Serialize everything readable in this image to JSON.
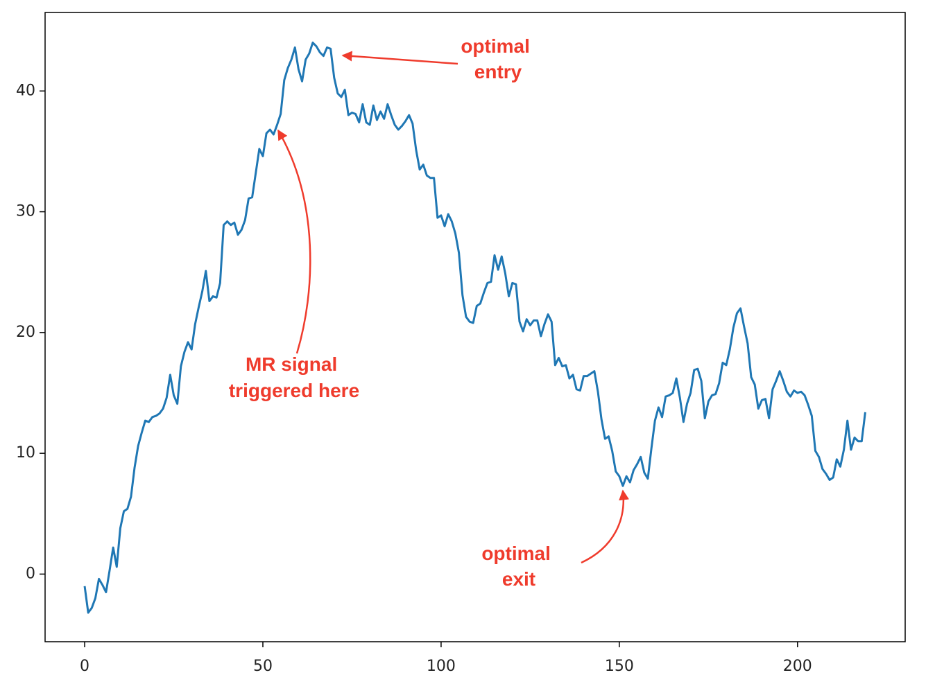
{
  "chart_data": {
    "type": "line",
    "x": [
      0,
      1,
      2,
      3,
      4,
      5,
      6,
      7,
      8,
      9,
      10,
      11,
      12,
      13,
      14,
      15,
      16,
      17,
      18,
      19,
      20,
      21,
      22,
      23,
      24,
      25,
      26,
      27,
      28,
      29,
      30,
      31,
      32,
      33,
      34,
      35,
      36,
      37,
      38,
      39,
      40,
      41,
      42,
      43,
      44,
      45,
      46,
      47,
      48,
      49,
      50,
      51,
      52,
      53,
      54,
      55,
      56,
      57,
      58,
      59,
      60,
      61,
      62,
      63,
      64,
      65,
      66,
      67,
      68,
      69,
      70,
      71,
      72,
      73,
      74,
      75,
      76,
      77,
      78,
      79,
      80,
      81,
      82,
      83,
      84,
      85,
      86,
      87,
      88,
      89,
      90,
      91,
      92,
      93,
      94,
      95,
      96,
      97,
      98,
      99,
      100,
      101,
      102,
      103,
      104,
      105,
      106,
      107,
      108,
      109,
      110,
      111,
      112,
      113,
      114,
      115,
      116,
      117,
      118,
      119,
      120,
      121,
      122,
      123,
      124,
      125,
      126,
      127,
      128,
      129,
      130,
      131,
      132,
      133,
      134,
      135,
      136,
      137,
      138,
      139,
      140,
      141,
      142,
      143,
      144,
      145,
      146,
      147,
      148,
      149,
      150,
      151,
      152,
      153,
      154,
      155,
      156,
      157,
      158,
      159,
      160,
      161,
      162,
      163,
      164,
      165,
      166,
      167,
      168,
      169,
      170,
      171,
      172,
      173,
      174,
      175,
      176,
      177,
      178,
      179,
      180,
      181,
      182,
      183,
      184,
      185,
      186,
      187,
      188,
      189,
      190,
      191,
      192,
      193,
      194,
      195,
      196,
      197,
      198,
      199,
      200,
      201,
      202,
      203,
      204,
      205,
      206,
      207,
      208,
      209,
      210,
      211,
      212,
      213,
      214,
      215,
      216,
      217,
      218,
      219
    ],
    "values": [
      -1.0,
      -3.2,
      -2.8,
      -2.0,
      -0.4,
      -0.9,
      -1.5,
      0.3,
      2.2,
      0.6,
      3.8,
      5.2,
      5.4,
      6.4,
      8.8,
      10.6,
      11.7,
      12.7,
      12.6,
      13.0,
      13.1,
      13.3,
      13.7,
      14.6,
      16.5,
      14.8,
      14.1,
      17.2,
      18.4,
      19.2,
      18.6,
      20.7,
      22.1,
      23.4,
      25.1,
      22.6,
      23.0,
      22.9,
      24.1,
      28.9,
      29.2,
      28.9,
      29.1,
      28.1,
      28.5,
      29.3,
      31.1,
      31.2,
      33.2,
      35.2,
      34.6,
      36.5,
      36.8,
      36.4,
      37.2,
      38.1,
      40.9,
      41.9,
      42.6,
      43.6,
      41.8,
      40.8,
      42.6,
      43.1,
      44.0,
      43.7,
      43.2,
      42.9,
      43.6,
      43.5,
      41.1,
      39.8,
      39.5,
      40.1,
      38.0,
      38.2,
      38.1,
      37.4,
      38.9,
      37.4,
      37.2,
      38.8,
      37.6,
      38.3,
      37.7,
      38.9,
      38.0,
      37.2,
      36.8,
      37.1,
      37.5,
      38.0,
      37.3,
      35.1,
      33.5,
      33.9,
      33.0,
      32.8,
      32.8,
      29.5,
      29.7,
      28.8,
      29.8,
      29.2,
      28.2,
      26.6,
      23.1,
      21.3,
      20.9,
      20.8,
      22.2,
      22.4,
      23.3,
      24.1,
      24.2,
      26.4,
      25.2,
      26.3,
      24.9,
      23.0,
      24.1,
      24.0,
      20.9,
      20.1,
      21.1,
      20.6,
      21.0,
      21.0,
      19.7,
      20.7,
      21.5,
      20.9,
      17.3,
      17.9,
      17.2,
      17.3,
      16.2,
      16.5,
      15.3,
      15.2,
      16.4,
      16.4,
      16.6,
      16.8,
      15.1,
      12.8,
      11.2,
      11.4,
      10.2,
      8.5,
      8.1,
      7.3,
      8.1,
      7.6,
      8.6,
      9.1,
      9.7,
      8.4,
      7.9,
      10.4,
      12.7,
      13.8,
      13.0,
      14.7,
      14.8,
      15.0,
      16.2,
      14.6,
      12.6,
      14.1,
      15.0,
      16.9,
      17.0,
      16.0,
      12.9,
      14.3,
      14.8,
      14.9,
      15.8,
      17.5,
      17.3,
      18.6,
      20.4,
      21.6,
      22.0,
      20.5,
      19.1,
      16.3,
      15.7,
      13.7,
      14.4,
      14.5,
      12.9,
      15.3,
      16.0,
      16.8,
      16.0,
      15.1,
      14.7,
      15.2,
      15.0,
      15.1,
      14.8,
      14.0,
      13.1,
      10.2,
      9.7,
      8.7,
      8.3,
      7.8,
      8.0,
      9.5,
      8.9,
      10.3,
      12.7,
      10.3,
      11.3,
      11.0,
      11.0,
      13.4
    ],
    "color": "#1f77b4",
    "xlim": [
      -11.1,
      230.2
    ],
    "xticks": [
      0,
      50,
      100,
      150,
      200
    ],
    "ylim": [
      -5.6,
      46.5
    ],
    "yticks": [
      0,
      10,
      20,
      30,
      40
    ],
    "grid": false,
    "annotations": [
      {
        "lines": [
          "optimal",
          "entry"
        ]
      },
      {
        "lines": [
          "MR signal",
          "triggered here"
        ]
      },
      {
        "lines": [
          "optimal",
          "exit"
        ]
      }
    ]
  }
}
